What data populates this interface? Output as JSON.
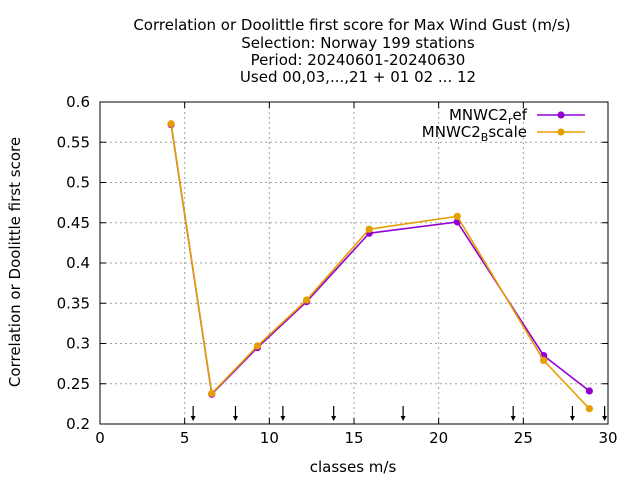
{
  "chart_data": {
    "type": "line",
    "title_lines": [
      "Correlation or Doolittle first score  for Max Wind Gust (m/s)",
      "Selection: Norway    199 stations",
      "Period: 20240601-20240630",
      "Used 00,03,...,21 + 01 02 ... 12"
    ],
    "xlabel": "classes m/s",
    "ylabel": "Correlation or Doolittle first score",
    "xlim": [
      0,
      30
    ],
    "ylim": [
      0.2,
      0.6
    ],
    "xticks": [
      0,
      5,
      10,
      15,
      20,
      25,
      30
    ],
    "yticks": [
      0.2,
      0.25,
      0.3,
      0.35,
      0.4,
      0.45,
      0.5,
      0.55,
      0.6
    ],
    "grid": true,
    "legend_position": "top-right",
    "series": [
      {
        "name": "MNWC2_ref",
        "legend_main": "MNWC2",
        "legend_sub": "r",
        "legend_tail": "ef",
        "color": "#9400D3",
        "x": [
          4.2,
          6.6,
          9.3,
          12.2,
          15.9,
          21.1,
          26.2,
          28.9
        ],
        "y": [
          0.572,
          0.237,
          0.295,
          0.352,
          0.437,
          0.451,
          0.285,
          0.241
        ]
      },
      {
        "name": "MNWC2_Bscale",
        "legend_main": "MNWC2",
        "legend_sub": "B",
        "legend_tail": "scale",
        "color": "#E69F00",
        "x": [
          4.2,
          6.6,
          9.3,
          12.2,
          15.9,
          21.1,
          26.2,
          28.9
        ],
        "y": [
          0.573,
          0.238,
          0.297,
          0.354,
          0.442,
          0.458,
          0.279,
          0.219
        ]
      }
    ],
    "arrows_x": [
      5.5,
      8.0,
      10.8,
      13.8,
      17.9,
      24.4,
      27.9,
      29.8
    ]
  }
}
